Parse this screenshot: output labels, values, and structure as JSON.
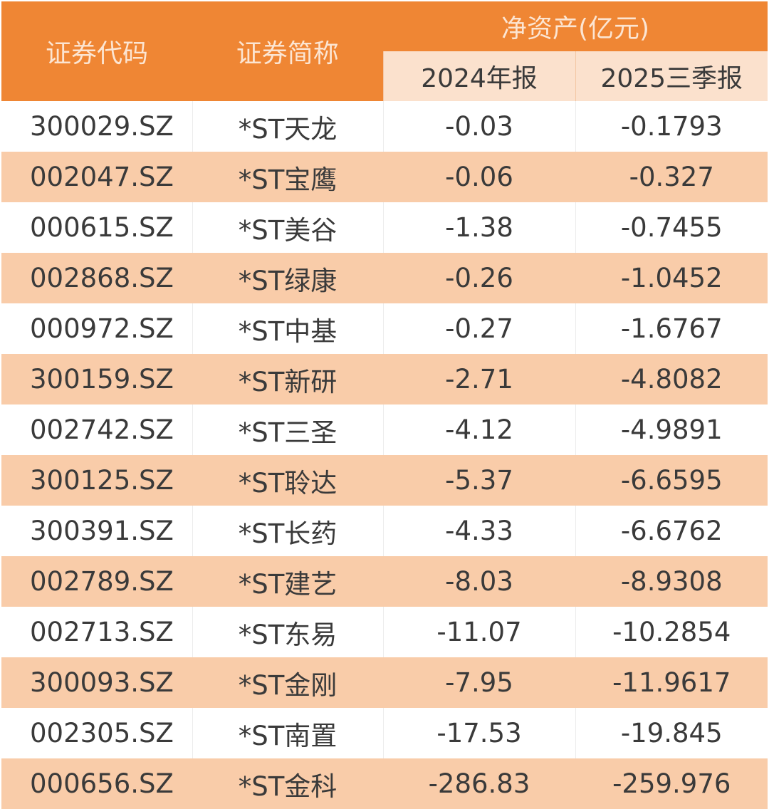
{
  "header": {
    "col_code": "证券代码",
    "col_name": "证券简称",
    "col_group": "净资产(亿元)",
    "col_2024": "2024年报",
    "col_2025": "2025三季报"
  },
  "colors": {
    "header_orange": "#ef8634",
    "subheader_peach": "#fbe1cd",
    "row_stripe": "#f9cca9",
    "row_plain": "#ffffff",
    "text": "#3a3a3a"
  },
  "rows": [
    {
      "code": "300029.SZ",
      "name": "*ST天龙",
      "v2024": "-0.03",
      "v2025": "-0.1793"
    },
    {
      "code": "002047.SZ",
      "name": "*ST宝鹰",
      "v2024": "-0.06",
      "v2025": "-0.327"
    },
    {
      "code": "000615.SZ",
      "name": "*ST美谷",
      "v2024": "-1.38",
      "v2025": "-0.7455"
    },
    {
      "code": "002868.SZ",
      "name": "*ST绿康",
      "v2024": "-0.26",
      "v2025": "-1.0452"
    },
    {
      "code": "000972.SZ",
      "name": "*ST中基",
      "v2024": "-0.27",
      "v2025": "-1.6767"
    },
    {
      "code": "300159.SZ",
      "name": "*ST新研",
      "v2024": "-2.71",
      "v2025": "-4.8082"
    },
    {
      "code": "002742.SZ",
      "name": "*ST三圣",
      "v2024": "-4.12",
      "v2025": "-4.9891"
    },
    {
      "code": "300125.SZ",
      "name": "*ST聆达",
      "v2024": "-5.37",
      "v2025": "-6.6595"
    },
    {
      "code": "300391.SZ",
      "name": "*ST长药",
      "v2024": "-4.33",
      "v2025": "-6.6762"
    },
    {
      "code": "002789.SZ",
      "name": "*ST建艺",
      "v2024": "-8.03",
      "v2025": "-8.9308"
    },
    {
      "code": "002713.SZ",
      "name": "*ST东易",
      "v2024": "-11.07",
      "v2025": "-10.2854"
    },
    {
      "code": "300093.SZ",
      "name": "*ST金刚",
      "v2024": "-7.95",
      "v2025": "-11.9617"
    },
    {
      "code": "002305.SZ",
      "name": "*ST南置",
      "v2024": "-17.53",
      "v2025": "-19.845"
    },
    {
      "code": "000656.SZ",
      "name": "*ST金科",
      "v2024": "-286.83",
      "v2025": "-259.976"
    }
  ]
}
